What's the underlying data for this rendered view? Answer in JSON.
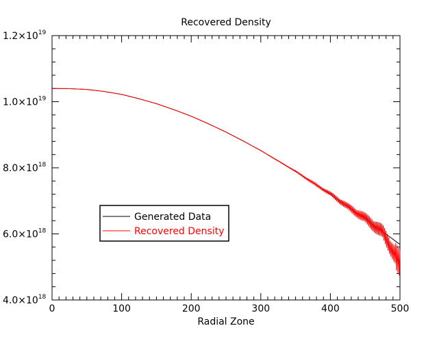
{
  "chart_data": {
    "type": "line",
    "title": "Recovered Density",
    "xlabel": "Radial Zone",
    "ylabel": "",
    "xlim": [
      0,
      500
    ],
    "ylim": [
      4e+18,
      1.2e+19
    ],
    "x_ticks": [
      {
        "value": 0,
        "label": "0"
      },
      {
        "value": 100,
        "label": "100"
      },
      {
        "value": 200,
        "label": "200"
      },
      {
        "value": 300,
        "label": "300"
      },
      {
        "value": 400,
        "label": "400"
      },
      {
        "value": 500,
        "label": "500"
      }
    ],
    "y_ticks": [
      {
        "value": 4e+18,
        "mantissa": "4.0×10",
        "exp": "18"
      },
      {
        "value": 6e+18,
        "mantissa": "6.0×10",
        "exp": "18"
      },
      {
        "value": 8e+18,
        "mantissa": "8.0×10",
        "exp": "18"
      },
      {
        "value": 1e+19,
        "mantissa": "1.0×10",
        "exp": "19"
      },
      {
        "value": 1.2e+19,
        "mantissa": "1.2×10",
        "exp": "19"
      }
    ],
    "x": [
      0,
      25,
      50,
      75,
      100,
      125,
      150,
      175,
      200,
      225,
      250,
      275,
      300,
      325,
      350,
      375,
      400,
      425,
      450,
      475,
      500
    ],
    "series": [
      {
        "name": "Generated Data",
        "color": "#000000",
        "values": [
          1.04e+19,
          1.0395e+19,
          1.037e+19,
          1.031e+19,
          1.022e+19,
          1.009e+19,
          9.94e+18,
          9.76e+18,
          9.56e+18,
          9.33e+18,
          9.08e+18,
          8.81e+18,
          8.52e+18,
          8.21e+18,
          7.89e+18,
          7.55e+18,
          7.2e+18,
          6.83e+18,
          6.45e+18,
          6.07e+18,
          5.68e+18
        ]
      },
      {
        "name": "Recovered Density",
        "color": "#ff0000",
        "values": [
          1.04e+19,
          1.0394e+19,
          1.0372e+19,
          1.0308e+19,
          1.0222e+19,
          1.0088e+19,
          9.942e+18,
          9.758e+18,
          9.562e+18,
          9.328e+18,
          9.082e+18,
          8.806e+18,
          8.524e+18,
          8.205e+18,
          7.895e+18,
          7.545e+18,
          7.21e+18,
          6.82e+18,
          6.47e+18,
          6.05e+18,
          5.1e+18
        ]
      }
    ],
    "legend": {
      "placement": "lower-left",
      "entries": [
        "Generated Data",
        "Recovered Density"
      ]
    },
    "grid": false
  }
}
